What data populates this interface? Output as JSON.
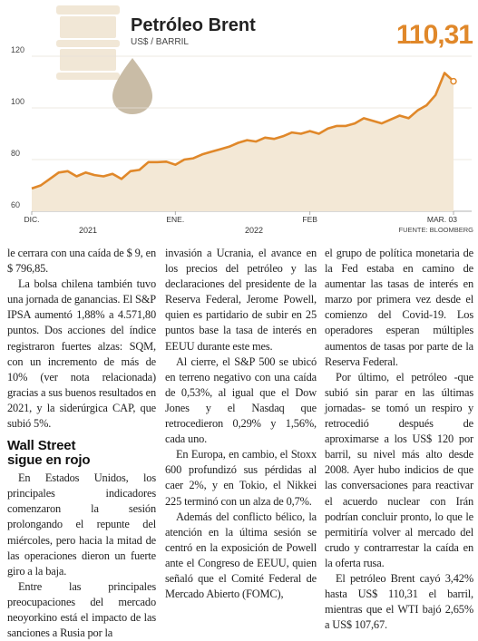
{
  "chart_data": {
    "type": "line",
    "title": "Petróleo Brent",
    "subtitle": "US$ / BARRIL",
    "source": "FUENTE: BLOOMBERG",
    "categories": [
      "DIC.",
      null,
      null,
      null,
      null,
      null,
      null,
      null,
      null,
      null,
      null,
      null,
      null,
      null,
      null,
      null,
      "ENE.",
      null,
      null,
      null,
      null,
      null,
      null,
      null,
      null,
      null,
      null,
      null,
      null,
      null,
      null,
      "FEB",
      null,
      null,
      null,
      null,
      null,
      null,
      null,
      null,
      null,
      null,
      null,
      null,
      null,
      null,
      null,
      "MAR. 03"
    ],
    "x_groups": [
      "2021",
      "2022"
    ],
    "series": [
      {
        "name": "Petróleo Brent",
        "color": "#e0882a",
        "values": [
          68.8,
          70,
          72.5,
          75,
          75.5,
          73.5,
          75,
          74,
          73.5,
          74.5,
          72.5,
          75.5,
          76,
          79,
          79,
          79.2,
          78,
          80,
          80.5,
          82,
          83,
          84,
          85,
          86.5,
          87.5,
          87,
          88.5,
          88,
          89,
          90.5,
          90,
          91,
          90,
          92,
          93,
          93,
          94,
          96,
          95,
          94,
          95.5,
          97,
          96,
          99,
          101,
          105,
          113.5,
          110.31
        ],
        "value_labels": [
          null,
          null,
          null,
          null,
          null,
          null,
          null,
          null,
          null,
          null,
          null,
          null,
          null,
          null,
          null,
          null,
          null,
          null,
          null,
          null,
          null,
          null,
          null,
          null,
          null,
          null,
          null,
          null,
          null,
          null,
          null,
          null,
          null,
          null,
          null,
          null,
          null,
          null,
          null,
          null,
          null,
          null,
          null,
          null,
          null,
          null,
          null,
          "110,31"
        ]
      }
    ],
    "ylim": [
      60,
      120
    ],
    "yticks": [
      60,
      80,
      100,
      120
    ],
    "grid": true,
    "fill": "#f3e8d6"
  },
  "article": {
    "columns": [
      [
        {
          "kind": "cont",
          "text": "le cerrara con una caída de $ 9, en $ 796,85."
        },
        {
          "kind": "p",
          "text": "La bolsa chilena también tuvo una jornada de ganancias. El S&P IPSA aumentó 1,88% a 4.571,80 puntos. Dos acciones del índice registraron fuertes alzas: SQM, con un incremento de más de 10% (ver nota relacionada) gracias a sus buenos resultados en 2021, y la siderúrgica CAP, que subió 5%."
        },
        {
          "kind": "h",
          "lines": [
            "Wall Street",
            "sigue en rojo"
          ]
        },
        {
          "kind": "p",
          "text": "En Estados Unidos, los principales indicadores comenzaron la sesión prolongando el repunte del miércoles, pero hacia la mitad de las operaciones dieron un fuerte giro a la baja."
        },
        {
          "kind": "p",
          "text": "Entre las principales preocupaciones del mercado neoyorkino está el impacto de las sanciones a Rusia por la"
        }
      ],
      [
        {
          "kind": "cont",
          "text": "invasión a Ucrania, el avance en los precios del petróleo y las declaraciones del presidente de la Reserva Federal, Jerome Powell, quien es partidario de subir en 25 puntos base la tasa de interés en EEUU durante este mes."
        },
        {
          "kind": "p",
          "text": "Al cierre, el S&P 500 se ubicó en terreno negativo con una caída de 0,53%, al igual que el Dow Jones y el Nasdaq que retrocedieron 0,29% y 1,56%, cada uno."
        },
        {
          "kind": "p",
          "text": "En Europa, en cambio, el Stoxx 600 profundizó sus pérdidas al caer 2%, y en Tokio, el Nikkei 225 terminó con un alza de 0,7%."
        },
        {
          "kind": "p",
          "text": "Además del conflicto bélico, la atención en la última sesión se centró en la exposición de Powell ante el Congreso de EEUU, quien señaló que el Comité Federal de Mercado Abierto (FOMC),"
        }
      ],
      [
        {
          "kind": "cont",
          "text": "el grupo de política monetaria de la Fed estaba en camino de aumentar las tasas de interés en marzo por primera vez desde el comienzo del Covid-19. Los operadores esperan múltiples aumentos de tasas por parte de la Reserva Federal."
        },
        {
          "kind": "p",
          "text": "Por último, el petróleo -que subió sin parar en las últimas jornadas- se tomó un respiro y retrocedió después de aproximarse a los US$ 120 por barril, su nivel más alto desde 2008. Ayer hubo indicios de que las conversaciones para reactivar el acuerdo nuclear con Irán podrían concluir pronto, lo que le permitiría volver al mercado del crudo y contrarrestar la caída en la oferta rusa."
        },
        {
          "kind": "p",
          "text": "El petróleo Brent cayó 3,42% hasta US$ 110,31 el barril, mientras que el WTI bajó 2,65% a US$ 107,67."
        }
      ]
    ]
  }
}
